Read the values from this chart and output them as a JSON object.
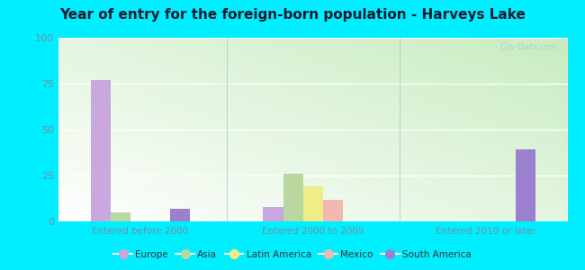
{
  "title": "Year of entry for the foreign-born population - Harveys Lake",
  "categories": [
    "Entered before 2000",
    "Entered 2000 to 2009",
    "Entered 2010 or later"
  ],
  "series": {
    "Europe": [
      77,
      8,
      0
    ],
    "Asia": [
      5,
      26,
      0
    ],
    "Latin America": [
      0,
      19,
      0
    ],
    "Mexico": [
      0,
      12,
      0
    ],
    "South America": [
      7,
      0,
      39
    ]
  },
  "colors": {
    "Europe": "#c9a8e0",
    "Asia": "#b8d8a0",
    "Latin America": "#eeed88",
    "Mexico": "#f0b8b0",
    "South America": "#9b80d0"
  },
  "ylim": [
    0,
    100
  ],
  "yticks": [
    0,
    25,
    50,
    75,
    100
  ],
  "background_color": "#00eeff",
  "watermark": "City-Data.com",
  "title_fontsize": 11,
  "axis_label_color": "#7090a0",
  "bar_width": 0.09,
  "group_centers": [
    0.22,
    1.0,
    1.78
  ]
}
